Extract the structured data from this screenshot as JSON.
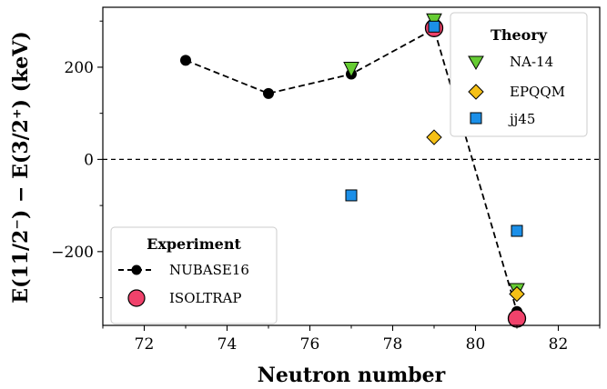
{
  "chart_data": {
    "type": "scatter",
    "xlabel": "Neutron number",
    "ylabel": "E(11/2⁻) − E(3/2⁺) (keV)",
    "xlim": [
      71,
      83
    ],
    "ylim": [
      -360,
      330
    ],
    "x_ticks": [
      72,
      74,
      76,
      78,
      80,
      82
    ],
    "y_ticks": [
      -200,
      0,
      200
    ],
    "reference_line": {
      "y": 0,
      "style": "dashed"
    },
    "experiment_legend": {
      "title": "Experiment",
      "placement": "lower-left"
    },
    "theory_legend": {
      "title": "Theory",
      "placement": "upper-right"
    },
    "series": [
      {
        "name": "NUBASE16",
        "group": "experiment",
        "marker": "circle",
        "style": "dashed-line",
        "color": "#000000",
        "x": [
          73,
          75,
          77,
          79,
          81
        ],
        "y": [
          215,
          143,
          185,
          283,
          -330
        ]
      },
      {
        "name": "ISOLTRAP",
        "group": "experiment",
        "marker": "circle-large",
        "color": "#f0426b",
        "x": [
          79,
          81
        ],
        "y": [
          285,
          -345
        ]
      },
      {
        "name": "NA-14",
        "group": "theory",
        "marker": "triangle-down",
        "color": "#66cc33",
        "x": [
          77,
          79,
          81
        ],
        "y": [
          195,
          300,
          -285
        ]
      },
      {
        "name": "EPQQM",
        "group": "theory",
        "marker": "diamond",
        "color": "#f5c016",
        "x": [
          79,
          81
        ],
        "y": [
          48,
          -292
        ]
      },
      {
        "name": "jj45",
        "group": "theory",
        "marker": "square",
        "color": "#1b8fe8",
        "x": [
          77,
          79,
          81
        ],
        "y": [
          -78,
          288,
          -155
        ]
      }
    ]
  }
}
